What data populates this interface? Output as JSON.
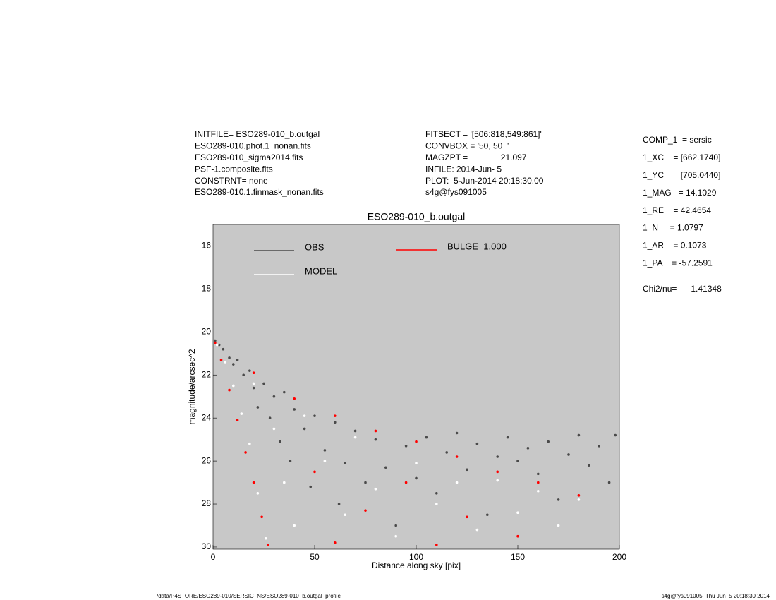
{
  "header": {
    "left_lines": [
      "INITFILE= ESO289-010_b.outgal",
      "ESO289-010.phot.1_nonan.fits",
      "ESO289-010_sigma2014.fits",
      "PSF-1.composite.fits",
      "CONSTRNT= none",
      "ESO289-010.1.finmask_nonan.fits"
    ],
    "middle_lines": [
      "FITSECT = '[506:818,549:861]'",
      "CONVBOX = '50, 50  '",
      "MAGZPT =              21.097",
      "INFILE: 2014-Jun- 5",
      "PLOT:  5-Jun-2014 20:18:30.00",
      "s4g@fys091005"
    ]
  },
  "parameters": [
    "COMP_1  = sersic",
    "1_XC    = [662.1740]",
    "1_YC    = [705.0440]",
    "1_MAG   = 14.1029",
    "1_RE    = 42.4654",
    "1_N     = 1.0797",
    "1_AR    = 0.1073",
    "1_PA    = -57.2591"
  ],
  "chi2": "Chi2/nu=      1.41348",
  "footer": {
    "left": "/data/P4STORE/ESO289-010/SERSIC_NS/ESO289-010_b.outgal_profile",
    "right": "s4g@fys091005  Thu Jun  5 20:18:30 2014"
  },
  "chart_data": {
    "type": "scatter",
    "title": "ESO289-010_b.outgal",
    "xlabel": "Distance along sky [pix]",
    "ylabel": "magnitude/arcsec^2",
    "xlim": [
      0,
      200
    ],
    "xticks": [
      0,
      50,
      100,
      150,
      200
    ],
    "ylim": [
      30.1,
      15
    ],
    "yticks": [
      16,
      18,
      20,
      22,
      24,
      26,
      28,
      30
    ],
    "background": "#c8c8c8",
    "grid": false,
    "series": [
      {
        "name": "OBS",
        "color": "#4a4a4a",
        "x": [
          1,
          3,
          5,
          8,
          10,
          12,
          15,
          18,
          20,
          22,
          25,
          28,
          30,
          33,
          35,
          38,
          40,
          45,
          48,
          50,
          55,
          60,
          62,
          65,
          70,
          75,
          80,
          85,
          90,
          95,
          100,
          105,
          110,
          115,
          120,
          125,
          130,
          135,
          140,
          145,
          150,
          155,
          160,
          165,
          170,
          175,
          180,
          185,
          190,
          195,
          198
        ],
        "values": [
          20.4,
          20.6,
          20.8,
          21.2,
          21.5,
          21.3,
          22.0,
          21.8,
          22.6,
          23.5,
          22.4,
          24.0,
          23.0,
          25.1,
          22.8,
          26.0,
          23.6,
          24.5,
          27.2,
          23.9,
          25.5,
          24.2,
          28.0,
          26.1,
          24.6,
          27.0,
          25.0,
          26.3,
          29.0,
          25.3,
          26.8,
          24.9,
          27.5,
          25.6,
          24.7,
          26.4,
          25.2,
          28.5,
          25.8,
          24.9,
          26.0,
          25.4,
          26.6,
          25.1,
          27.8,
          25.7,
          24.8,
          26.2,
          25.3,
          27.0,
          24.8
        ]
      },
      {
        "name": "MODEL",
        "color": "#ffffff",
        "x": [
          2,
          6,
          10,
          14,
          18,
          22,
          26,
          20,
          30,
          35,
          40,
          45,
          55,
          65,
          70,
          80,
          90,
          100,
          110,
          120,
          130,
          140,
          150,
          160,
          170,
          180
        ],
        "values": [
          20.6,
          21.4,
          22.5,
          23.8,
          25.2,
          27.5,
          29.6,
          22.4,
          24.5,
          27.0,
          29.0,
          23.9,
          26.0,
          28.5,
          24.9,
          27.3,
          29.5,
          26.1,
          28.0,
          27.0,
          29.2,
          26.9,
          28.4,
          27.4,
          29.0,
          27.8
        ]
      },
      {
        "name": "BULGE  1.000",
        "color": "#ff0000",
        "x": [
          1,
          4,
          8,
          12,
          16,
          20,
          24,
          27,
          20,
          40,
          60,
          80,
          100,
          120,
          140,
          160,
          180,
          50,
          75,
          95,
          125,
          150,
          60,
          110
        ],
        "values": [
          20.5,
          21.3,
          22.7,
          24.1,
          25.6,
          27.0,
          28.6,
          29.9,
          21.9,
          23.1,
          23.9,
          24.6,
          25.1,
          25.8,
          26.5,
          27.0,
          27.6,
          26.5,
          28.3,
          27.0,
          28.6,
          29.5,
          29.8,
          29.9
        ]
      }
    ]
  }
}
